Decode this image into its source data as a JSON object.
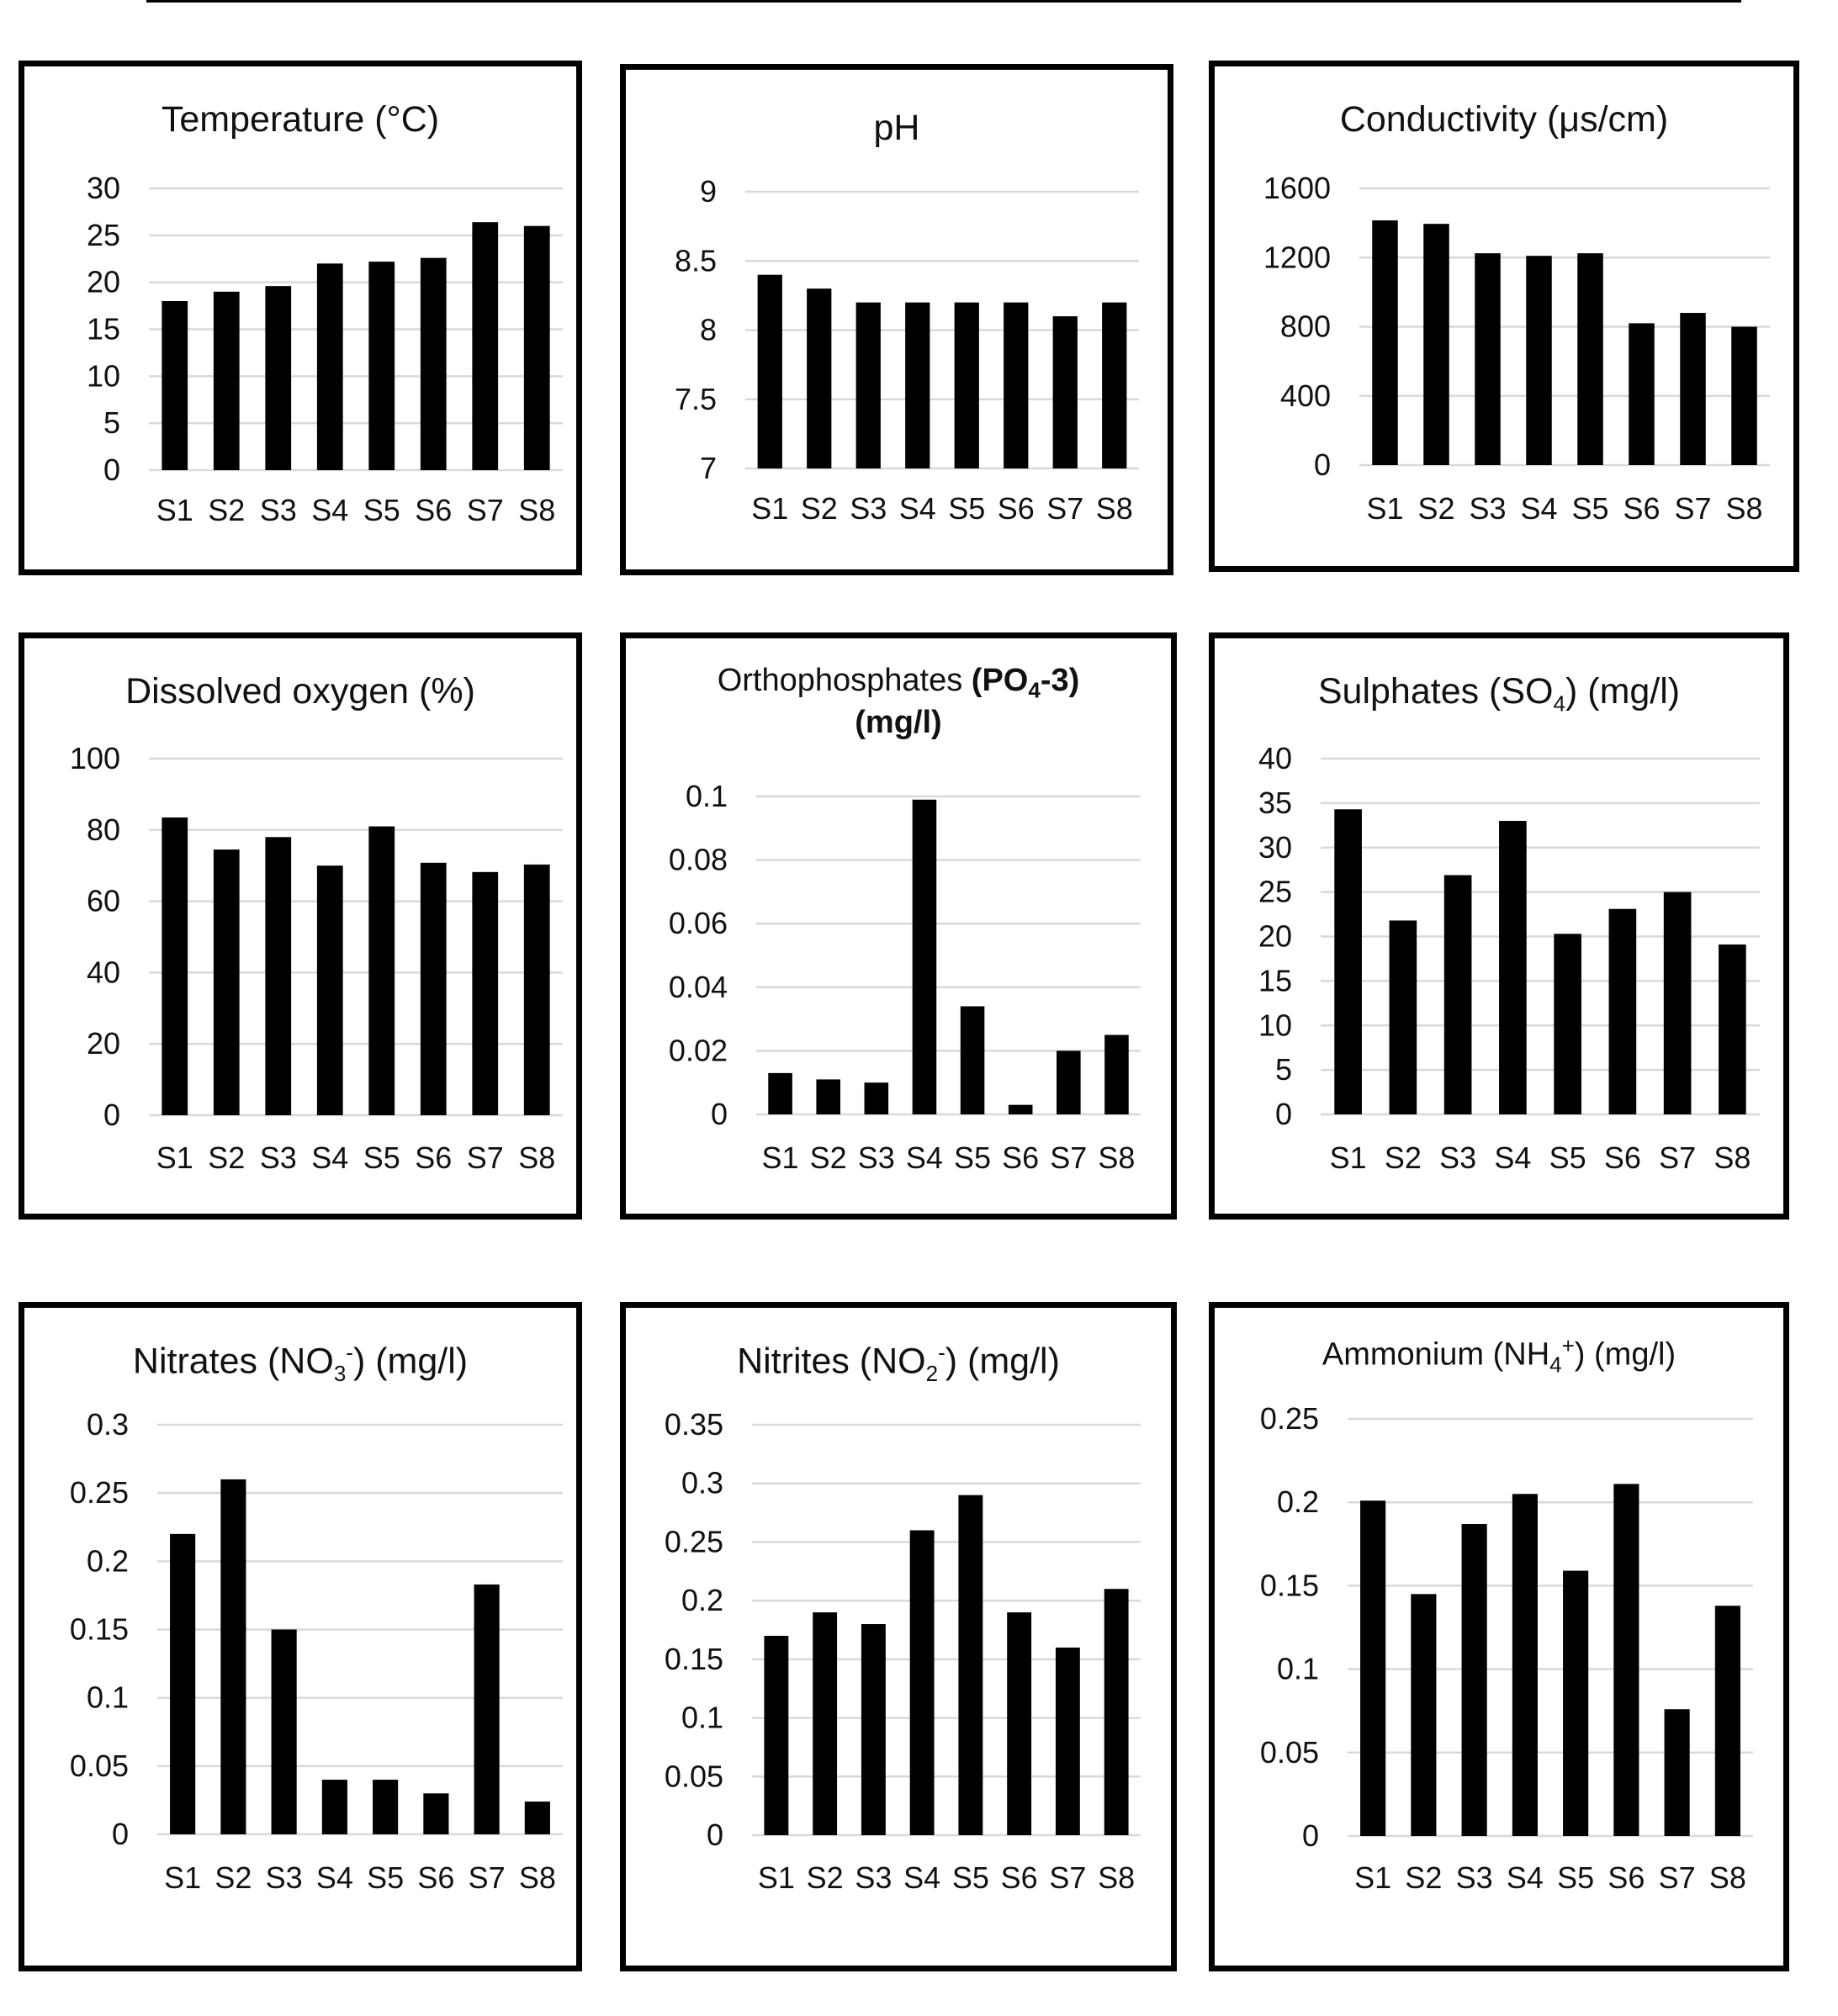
{
  "colors": {
    "bar": "#000000",
    "grid": "#d9d9d9",
    "frame": "#000000",
    "text": "#111111"
  },
  "chart_data": [
    {
      "type": "bar",
      "title_html": "Temperature (°C)",
      "categories": [
        "S1",
        "S2",
        "S3",
        "S4",
        "S5",
        "S6",
        "S7",
        "S8"
      ],
      "values": [
        18,
        19,
        19.6,
        22,
        22.2,
        22.6,
        26.4,
        26
      ],
      "ylim": [
        0,
        30
      ],
      "yticks": [
        "0",
        "5",
        "10",
        "15",
        "20",
        "25",
        "30"
      ],
      "grid": true
    },
    {
      "type": "bar",
      "title_html": "pH",
      "categories": [
        "S1",
        "S2",
        "S3",
        "S4",
        "S5",
        "S6",
        "S7",
        "S8"
      ],
      "values": [
        8.4,
        8.3,
        8.2,
        8.2,
        8.2,
        8.2,
        8.1,
        8.2
      ],
      "ylim": [
        7,
        9
      ],
      "yticks": [
        "7",
        "7.5",
        "8",
        "8.5",
        "9"
      ],
      "grid": true
    },
    {
      "type": "bar",
      "title_html": "Conductivity (μs/cm)",
      "categories": [
        "S1",
        "S2",
        "S3",
        "S4",
        "S5",
        "S6",
        "S7",
        "S8"
      ],
      "values": [
        1415,
        1395,
        1225,
        1210,
        1225,
        820,
        880,
        800
      ],
      "ylim": [
        0,
        1600
      ],
      "yticks": [
        "0",
        "400",
        "800",
        "1200",
        "1600"
      ],
      "grid": true
    },
    {
      "type": "bar",
      "title_html": "Dissolved oxygen (%)",
      "categories": [
        "S1",
        "S2",
        "S3",
        "S4",
        "S5",
        "S6",
        "S7",
        "S8"
      ],
      "values": [
        83.5,
        74.5,
        78,
        70,
        81,
        70.8,
        68.2,
        70.3
      ],
      "ylim": [
        0,
        100
      ],
      "yticks": [
        "0",
        "20",
        "40",
        "60",
        "80",
        "100"
      ],
      "grid": true
    },
    {
      "type": "bar",
      "title_html": "Orthophosphates <span class=\"b\">(PO<sub>4</sub>-3)</span><br><span class=\"b\">(mg/l)</span>",
      "categories": [
        "S1",
        "S2",
        "S3",
        "S4",
        "S5",
        "S6",
        "S7",
        "S8"
      ],
      "values": [
        0.013,
        0.011,
        0.01,
        0.099,
        0.034,
        0.003,
        0.02,
        0.025
      ],
      "ylim": [
        0,
        0.1
      ],
      "yticks": [
        "0",
        "0.02",
        "0.04",
        "0.06",
        "0.08",
        "0.1"
      ],
      "grid": true
    },
    {
      "type": "bar",
      "title_html": "Sulphates (SO<sub>4</sub>) (mg/l)",
      "categories": [
        "S1",
        "S2",
        "S3",
        "S4",
        "S5",
        "S6",
        "S7",
        "S8"
      ],
      "values": [
        34.3,
        21.8,
        26.9,
        33,
        20.3,
        23.1,
        25,
        19.1
      ],
      "ylim": [
        0,
        40
      ],
      "yticks": [
        "0",
        "5",
        "10",
        "15",
        "20",
        "25",
        "30",
        "35",
        "40"
      ],
      "grid": true
    },
    {
      "type": "bar",
      "title_html": "Nitrates (NO<sub>3</sub><sup>-</sup>) (mg/l)",
      "categories": [
        "S1",
        "S2",
        "S3",
        "S4",
        "S5",
        "S6",
        "S7",
        "S8"
      ],
      "values": [
        0.22,
        0.26,
        0.15,
        0.04,
        0.04,
        0.03,
        0.183,
        0.024
      ],
      "ylim": [
        0,
        0.3
      ],
      "yticks": [
        "0",
        "0.05",
        "0.1",
        "0.15",
        "0.2",
        "0.25",
        "0.3"
      ],
      "grid": true
    },
    {
      "type": "bar",
      "title_html": "Nitrites (NO<sub>2</sub><sup>-</sup>) (mg/l)",
      "categories": [
        "S1",
        "S2",
        "S3",
        "S4",
        "S5",
        "S6",
        "S7",
        "S8"
      ],
      "values": [
        0.17,
        0.19,
        0.18,
        0.26,
        0.29,
        0.19,
        0.16,
        0.21
      ],
      "ylim": [
        0,
        0.35
      ],
      "yticks": [
        "0",
        "0.05",
        "0.1",
        "0.15",
        "0.2",
        "0.25",
        "0.3",
        "0.35"
      ],
      "grid": true
    },
    {
      "type": "bar",
      "title_html": "Ammonium (NH<sub>4</sub><sup>+</sup>) (mg/l)",
      "categories": [
        "S1",
        "S2",
        "S3",
        "S4",
        "S5",
        "S6",
        "S7",
        "S8"
      ],
      "values": [
        0.201,
        0.145,
        0.187,
        0.205,
        0.159,
        0.211,
        0.076,
        0.138
      ],
      "ylim": [
        0,
        0.25
      ],
      "yticks": [
        "0",
        "0.05",
        "0.1",
        "0.15",
        "0.2",
        "0.25"
      ],
      "grid": true
    }
  ]
}
